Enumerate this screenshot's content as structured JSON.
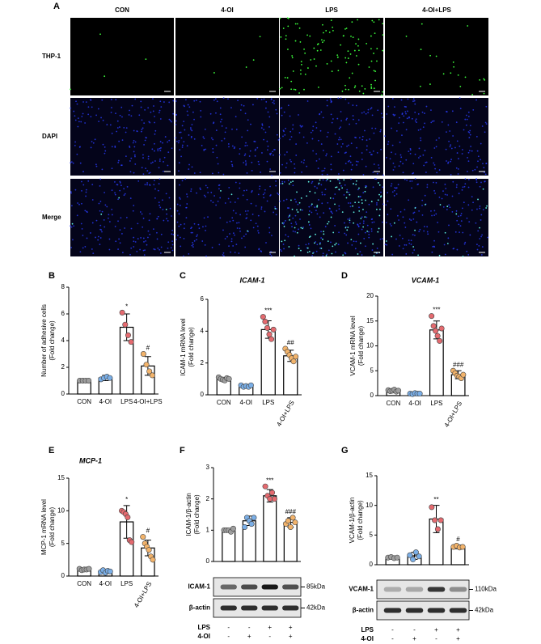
{
  "panel_a": {
    "letter": "A",
    "columns": [
      "CON",
      "4-OI",
      "LPS",
      "4-OI+LPS"
    ],
    "rows": [
      "THP-1",
      "DAPI",
      "Merge"
    ]
  },
  "chart_data": [
    {
      "type": "bar",
      "panel": "B",
      "ylabel": [
        "Number of adhesive cells",
        "(Fold change)"
      ],
      "categories": [
        "CON",
        "4-OI",
        "LPS",
        "4-OI+LPS"
      ],
      "values": [
        1.0,
        1.2,
        5.0,
        2.1
      ],
      "errors": [
        0.05,
        0.2,
        1.0,
        0.7
      ],
      "points": [
        [
          1,
          1,
          1,
          1
        ],
        [
          1.1,
          1.2,
          1.3,
          1.2
        ],
        [
          6.1,
          5.2,
          4.4,
          3.9
        ],
        [
          3.0,
          2.2,
          1.7,
          1.4
        ]
      ],
      "point_colors": [
        "#9e9e9e",
        "#7aaee6",
        "#e46a6f",
        "#f2b36b"
      ],
      "annotations": [
        null,
        null,
        "*",
        "#"
      ],
      "color": "#ffffff",
      "ylim": [
        0,
        8
      ],
      "yticks": [
        0,
        2,
        4,
        6,
        8
      ]
    },
    {
      "type": "bar",
      "panel": "C",
      "title": "ICAM-1",
      "ylabel": [
        "ICAM-1 mRNA level",
        "(Fold change)"
      ],
      "categories": [
        "CON",
        "4-OI",
        "LPS",
        "4-OI+LPS"
      ],
      "values": [
        1.0,
        0.55,
        4.1,
        2.45
      ],
      "errors": [
        0.1,
        0.08,
        0.55,
        0.35
      ],
      "points": [
        [
          1.1,
          1.0,
          0.95,
          0.9,
          1.05,
          1.0
        ],
        [
          0.6,
          0.5,
          0.55,
          0.5,
          0.6
        ],
        [
          4.9,
          4.6,
          4.2,
          3.8,
          3.5,
          4.1
        ],
        [
          2.9,
          2.7,
          2.5,
          2.3,
          2.1,
          2.4
        ]
      ],
      "point_colors": [
        "#9e9e9e",
        "#7aaee6",
        "#e46a6f",
        "#f2b36b"
      ],
      "annotations": [
        null,
        null,
        "***",
        "##"
      ],
      "color": "#ffffff",
      "ylim": [
        0,
        6
      ],
      "yticks": [
        0,
        2,
        4,
        6
      ]
    },
    {
      "type": "bar",
      "panel": "D",
      "title": "VCAM-1",
      "ylabel": [
        "VCAM-1 mRNA level",
        "(Fold change)"
      ],
      "categories": [
        "CON",
        "4-OI",
        "LPS",
        "4-OI+LPS"
      ],
      "values": [
        1.0,
        0.4,
        13.2,
        4.2
      ],
      "errors": [
        0.2,
        0.1,
        1.8,
        0.8
      ],
      "points": [
        [
          1.1,
          0.9,
          1.0,
          1.2,
          0.8,
          1.0
        ],
        [
          0.4,
          0.3,
          0.5,
          0.4,
          0.4
        ],
        [
          16,
          14,
          13,
          12,
          11,
          13.5
        ],
        [
          5.0,
          4.5,
          4.0,
          3.8,
          3.5,
          4.2
        ]
      ],
      "point_colors": [
        "#9e9e9e",
        "#7aaee6",
        "#e46a6f",
        "#f2b36b"
      ],
      "annotations": [
        null,
        null,
        "***",
        "###"
      ],
      "color": "#ffffff",
      "ylim": [
        0,
        20
      ],
      "yticks": [
        0,
        5,
        10,
        15,
        20
      ]
    },
    {
      "type": "bar",
      "panel": "E",
      "title": "MCP-1",
      "ylabel": [
        "MCP-1 mRNA level",
        "(Fold change)"
      ],
      "categories": [
        "CON",
        "4-OI",
        "LPS",
        "4-OI+LPS"
      ],
      "values": [
        1.0,
        0.7,
        8.3,
        4.3
      ],
      "errors": [
        0.15,
        0.3,
        2.5,
        1.2
      ],
      "points": [
        [
          1.1,
          0.9,
          1.0,
          1.0,
          1.1
        ],
        [
          0.6,
          0.9,
          0.5,
          0.8,
          0.7
        ],
        [
          10,
          9.8,
          9.5,
          9.0,
          5.5,
          5.2
        ],
        [
          6.0,
          5.0,
          4.5,
          4.0,
          3.0,
          2.5
        ]
      ],
      "point_colors": [
        "#9e9e9e",
        "#7aaee6",
        "#e46a6f",
        "#f2b36b"
      ],
      "annotations": [
        null,
        null,
        "*",
        "#"
      ],
      "color": "#ffffff",
      "ylim": [
        0,
        15
      ],
      "yticks": [
        0,
        5,
        10,
        15
      ]
    },
    {
      "type": "bar",
      "panel": "F",
      "ylabel": [
        "ICAM-1/β-actin",
        "(Fold change)"
      ],
      "values": [
        1.0,
        1.3,
        2.1,
        1.25
      ],
      "errors": [
        0.05,
        0.15,
        0.2,
        0.15
      ],
      "points": [
        [
          1.0,
          1.0,
          1.0,
          0.95,
          1.05
        ],
        [
          1.1,
          1.4,
          1.3,
          1.2,
          1.4
        ],
        [
          2.4,
          2.1,
          2.0,
          2.2,
          2.0
        ],
        [
          1.2,
          1.3,
          1.1,
          1.4,
          1.25
        ]
      ],
      "point_colors": [
        "#9e9e9e",
        "#7aaee6",
        "#e46a6f",
        "#f2b36b"
      ],
      "annotations": [
        null,
        null,
        "***",
        "###"
      ],
      "color": "#ffffff",
      "ylim": [
        0,
        3
      ],
      "yticks": [
        0,
        1,
        2,
        3
      ],
      "blot": {
        "rows": [
          {
            "name": "ICAM-1",
            "size": "85kDa"
          },
          {
            "name": "β-actin",
            "size": "42kDa"
          }
        ],
        "treatments": [
          {
            "name": "LPS",
            "signs": [
              "-",
              "-",
              "+",
              "+"
            ]
          },
          {
            "name": "4-OI",
            "signs": [
              "-",
              "+",
              "-",
              "+"
            ]
          }
        ]
      }
    },
    {
      "type": "bar",
      "panel": "G",
      "ylabel": [
        "VCAM-1/β-actin",
        "(Fold change)"
      ],
      "values": [
        1.2,
        1.5,
        7.7,
        3.0
      ],
      "errors": [
        0.2,
        0.6,
        2.3,
        0.3
      ],
      "points": [
        [
          1.2,
          1.3,
          1.1,
          1.2
        ],
        [
          1.6,
          0.9,
          2.1,
          1.4
        ],
        [
          9.7,
          7.5,
          6.0,
          7.5
        ],
        [
          3.0,
          3.2,
          2.9,
          3.0
        ]
      ],
      "point_colors": [
        "#9e9e9e",
        "#7aaee6",
        "#e46a6f",
        "#f2b36b"
      ],
      "annotations": [
        null,
        null,
        "**",
        "#"
      ],
      "color": "#ffffff",
      "ylim": [
        0,
        15
      ],
      "yticks": [
        0,
        5,
        10,
        15
      ],
      "blot": {
        "rows": [
          {
            "name": "VCAM-1",
            "size": "110kDa"
          },
          {
            "name": "β-actin",
            "size": "42kDa"
          }
        ],
        "treatments": [
          {
            "name": "LPS",
            "signs": [
              "-",
              "-",
              "+",
              "+"
            ]
          },
          {
            "name": "4-OI",
            "signs": [
              "-",
              "+",
              "-",
              "+"
            ]
          }
        ]
      }
    }
  ]
}
